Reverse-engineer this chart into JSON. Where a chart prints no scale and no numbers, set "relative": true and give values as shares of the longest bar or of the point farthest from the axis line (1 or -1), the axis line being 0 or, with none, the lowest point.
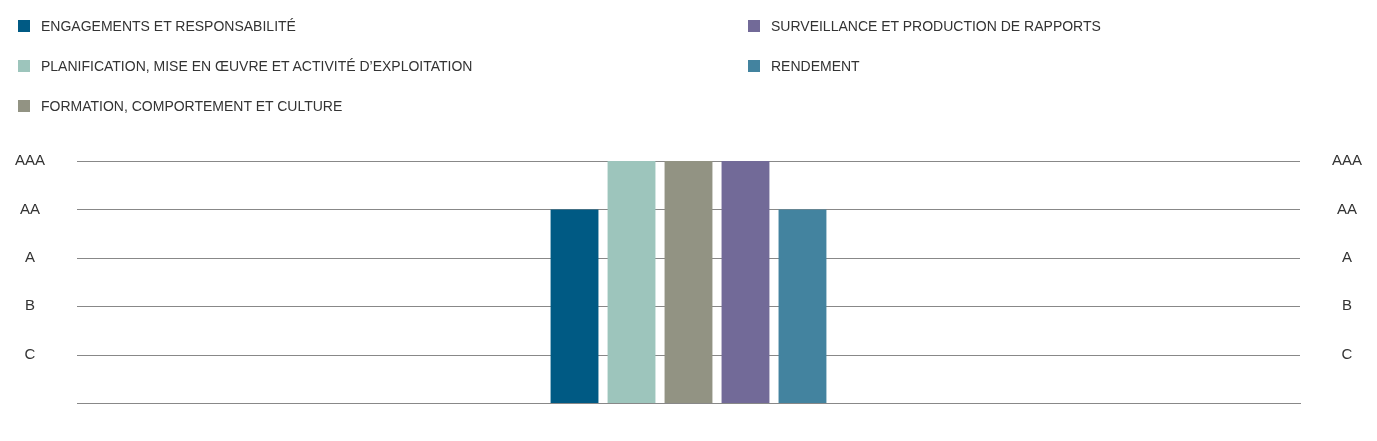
{
  "chart_data": {
    "type": "bar",
    "categories": [
      null
    ],
    "relative": true,
    "series": [
      {
        "name": "ENGAGEMENTS ET RESPONSABILITÉ",
        "color": "#005a84",
        "values": [
          0.8
        ]
      },
      {
        "name": "PLANIFICATION, MISE EN ŒUVRE ET ACTIVITÉ D’EXPLOITATION",
        "color": "#9dc5bc",
        "values": [
          1
        ]
      },
      {
        "name": "FORMATION, COMPORTEMENT ET CULTURE",
        "color": "#929383",
        "values": [
          1
        ]
      },
      {
        "name": "SURVEILLANCE ET PRODUCTION DE RAPPORTS",
        "color": "#726a98",
        "values": [
          1
        ]
      },
      {
        "name": "RENDEMENT",
        "color": "#43839f",
        "values": [
          0.8
        ]
      }
    ],
    "annotations": [
      "C",
      "B",
      "A",
      "AA",
      "AAA"
    ],
    "grid": "y",
    "legend": "top left"
  }
}
